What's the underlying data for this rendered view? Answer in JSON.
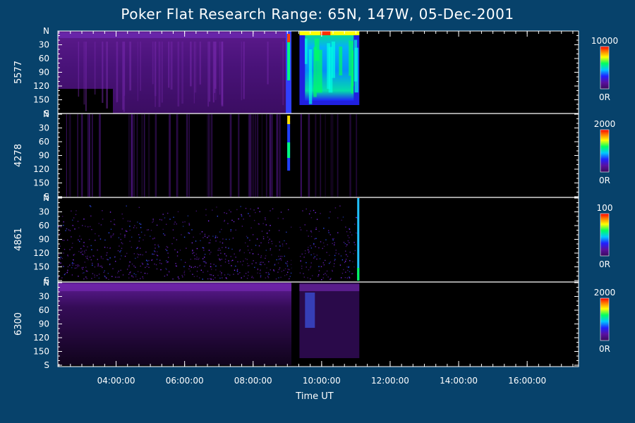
{
  "title": "Poker Flat Research Range: 65N, 147W, 05-Dec-2001",
  "chart_data": {
    "type": "heatmap",
    "title": "Poker Flat Research Range: 65N, 147W, 05-Dec-2001",
    "xlabel": "Time UT",
    "x_ticks": [
      "04:00:00",
      "06:00:00",
      "08:00:00",
      "10:00:00",
      "12:00:00",
      "14:00:00",
      "16:00:00"
    ],
    "x_tick_hours": [
      4,
      6,
      8,
      10,
      12,
      14,
      16
    ],
    "xlim_hours": [
      2.3,
      17.5
    ],
    "y_ticks": [
      "N",
      "30",
      "60",
      "90",
      "120",
      "150",
      "S"
    ],
    "y_tick_values": [
      0,
      30,
      60,
      90,
      120,
      150,
      180
    ],
    "ylim": [
      0,
      180
    ],
    "data_coverage_hours": [
      2.3,
      11.1
    ],
    "data_gap_hours": [
      9.12,
      9.35
    ],
    "panels": [
      {
        "label": "5577",
        "colorbar_max": "10000",
        "colorbar_min": "0R"
      },
      {
        "label": "4278",
        "colorbar_max": "2000",
        "colorbar_min": "0R"
      },
      {
        "label": "4861",
        "colorbar_max": "100",
        "colorbar_min": "0R"
      },
      {
        "label": "6300",
        "colorbar_max": "2000",
        "colorbar_min": "0R"
      }
    ],
    "colormap": [
      "#000000",
      "#3a0a5c",
      "#6a14a0",
      "#2020ff",
      "#00c8ff",
      "#00ff60",
      "#ffff00",
      "#ff8000",
      "#ff0000"
    ]
  }
}
